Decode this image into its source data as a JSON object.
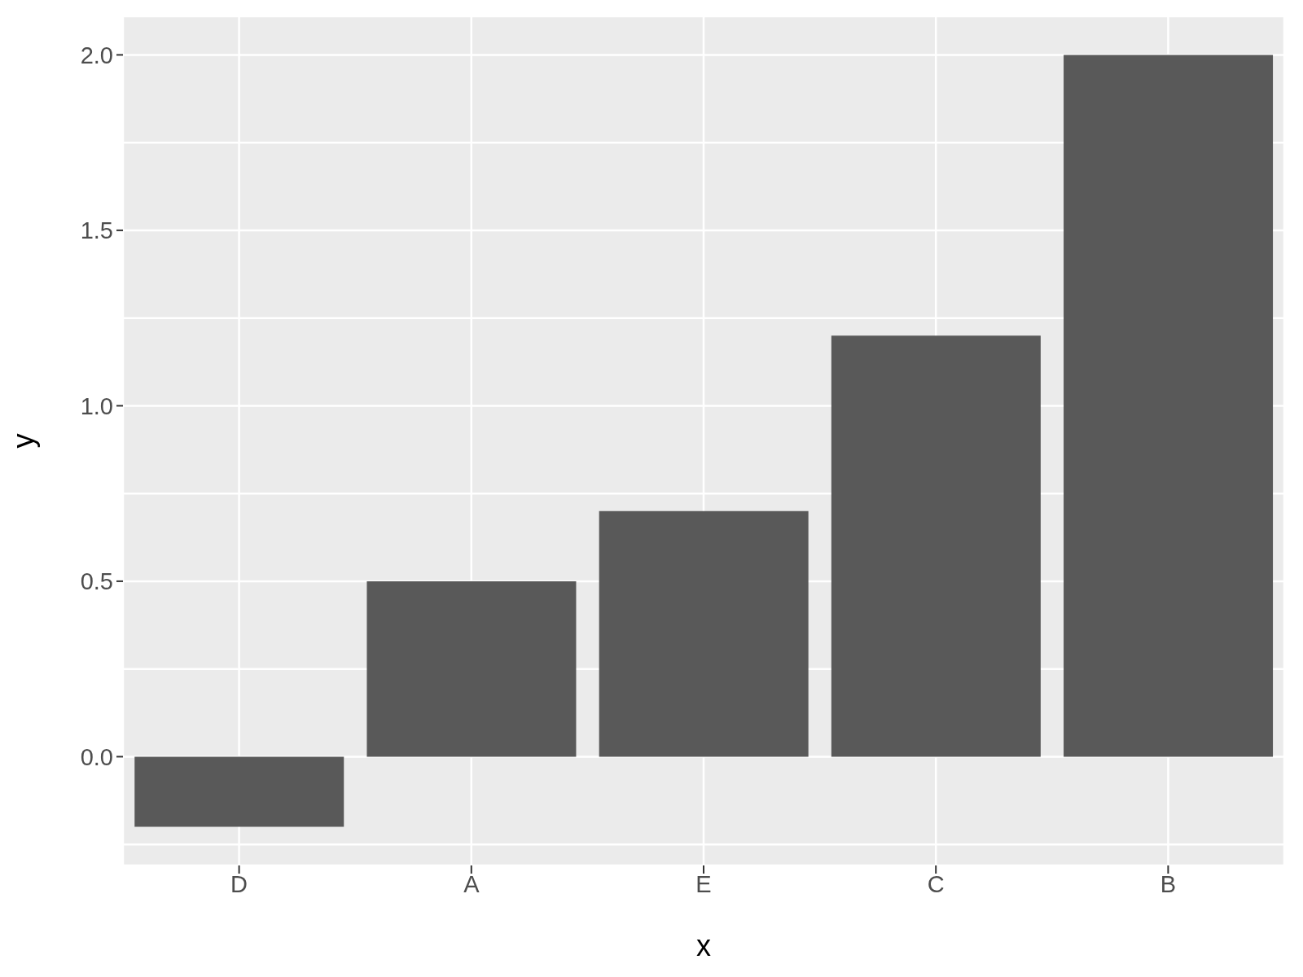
{
  "chart_data": {
    "type": "bar",
    "xlabel": "x",
    "ylabel": "y",
    "categories": [
      "D",
      "A",
      "E",
      "C",
      "B"
    ],
    "values": [
      -0.2,
      0.5,
      0.7,
      1.2,
      2.0
    ],
    "color": "#595959",
    "ylim": [
      -0.31,
      2.11
    ],
    "yticks": [
      {
        "value": -0.25,
        "label": null
      },
      {
        "value": 0,
        "label": "0.0"
      },
      {
        "value": 0.25,
        "label": null
      },
      {
        "value": 0.5,
        "label": "0.5"
      },
      {
        "value": 0.75,
        "label": null
      },
      {
        "value": 1,
        "label": "1.0"
      },
      {
        "value": 1.25,
        "label": null
      },
      {
        "value": 1.5,
        "label": "1.5"
      },
      {
        "value": 1.75,
        "label": null
      },
      {
        "value": 2,
        "label": "2.0"
      }
    ],
    "grid": true
  }
}
